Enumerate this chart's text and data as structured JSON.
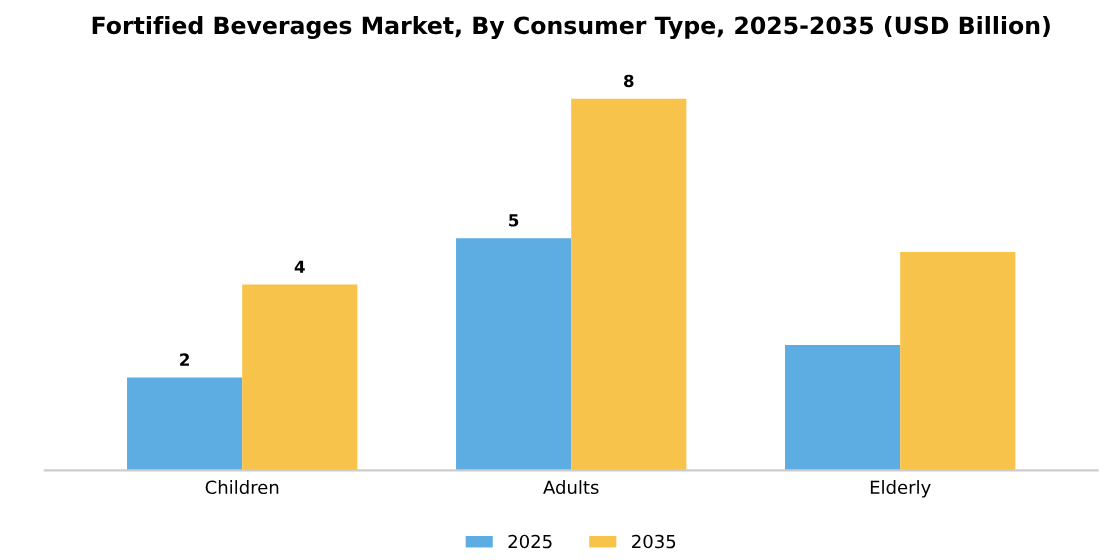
{
  "chart_data": {
    "type": "bar",
    "title": "Fortified Beverages Market, By Consumer Type, 2025-2035 (USD Billion)",
    "categories": [
      "Children",
      "Adults",
      "Elderly"
    ],
    "series": [
      {
        "name": "2025",
        "color": "#5dade2",
        "values": [
          2,
          5,
          2.7
        ],
        "value_labels": [
          "2",
          "5",
          null
        ]
      },
      {
        "name": "2035",
        "color": "#f7c34b",
        "values": [
          4,
          8,
          4.7
        ],
        "value_labels": [
          "4",
          "8",
          null
        ]
      }
    ],
    "legend": "bottom",
    "grid": false,
    "tick_labels": "x"
  }
}
